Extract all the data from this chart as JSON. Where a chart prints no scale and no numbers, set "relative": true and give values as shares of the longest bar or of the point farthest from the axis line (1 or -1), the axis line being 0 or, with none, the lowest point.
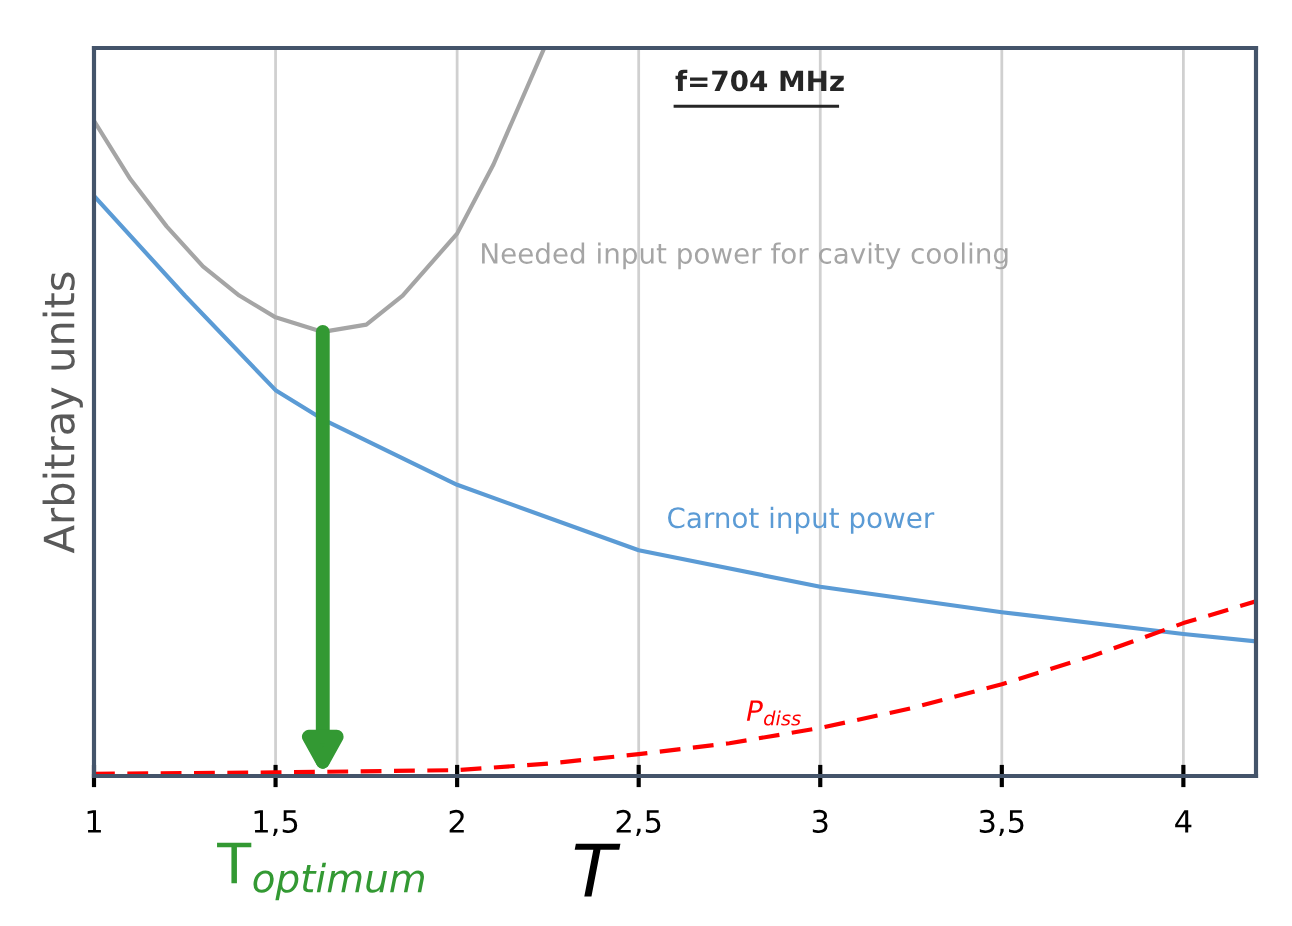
{
  "chart_data": {
    "type": "line",
    "relative": true,
    "xlabel": "T",
    "ylabel": "Arbitray units",
    "xlim": [
      1,
      4.2
    ],
    "xticks": [
      {
        "value": 1,
        "label": "1"
      },
      {
        "value": 1.5,
        "label": "1,5"
      },
      {
        "value": 2,
        "label": "2"
      },
      {
        "value": 2.5,
        "label": "2,5"
      },
      {
        "value": 3,
        "label": "3"
      },
      {
        "value": 3.5,
        "label": "3,5"
      },
      {
        "value": 4,
        "label": "4"
      }
    ],
    "grid": "x",
    "legend": false,
    "marker": "none",
    "series": [
      {
        "name": "Needed input power for cavity cooling",
        "color": "#a5a5a5",
        "line_style": "solid",
        "x": [
          1,
          1.1,
          1.2,
          1.3,
          1.4,
          1.5,
          1.63,
          1.75,
          1.85,
          2,
          2.1,
          2.24
        ],
        "values": [
          0.9,
          0.82,
          0.755,
          0.7,
          0.66,
          0.63,
          0.61,
          0.62,
          0.66,
          0.745,
          0.84,
          1
        ]
      },
      {
        "name": "Carnot input power",
        "color": "#5b9bd5",
        "line_style": "solid",
        "x": [
          1,
          1.25,
          1.5,
          1.63,
          2,
          2.5,
          3,
          3.5,
          4,
          4.2
        ],
        "values": [
          0.797,
          0.66,
          0.53,
          0.49,
          0.4,
          0.31,
          0.26,
          0.225,
          0.195,
          0.185
        ]
      },
      {
        "name": "P$_{diss}$",
        "color": "#ff0000",
        "line_style": "dashed",
        "x": [
          1,
          1.5,
          2,
          2.25,
          2.5,
          2.75,
          3,
          3.25,
          3.5,
          3.75,
          4,
          4.2
        ],
        "values": [
          0.003,
          0.005,
          0.008,
          0.017,
          0.03,
          0.045,
          0.066,
          0.093,
          0.126,
          0.165,
          0.21,
          0.24
        ]
      }
    ],
    "annotations": [
      "f=704 MHz",
      {
        "text": "T$_{optimum}$",
        "x": 1.63,
        "y": 0
      }
    ]
  }
}
